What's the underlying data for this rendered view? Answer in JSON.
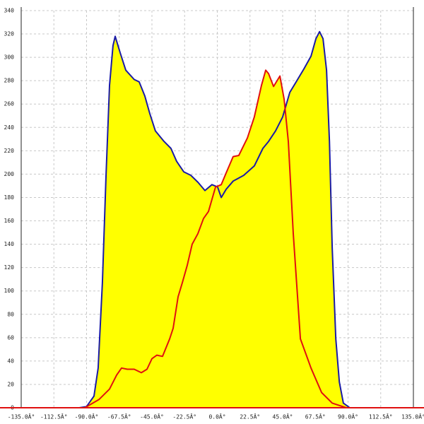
{
  "chart_data": {
    "type": "area",
    "fill": "#ffff00",
    "grid": true,
    "xlim": [
      -135,
      135
    ],
    "ylim": [
      0,
      340
    ],
    "xticks": [
      {
        "value": -135,
        "label": "-135.0Â°"
      },
      {
        "value": -112.5,
        "label": "-112.5Â°"
      },
      {
        "value": -90,
        "label": "-90.0Â°"
      },
      {
        "value": -67.5,
        "label": "-67.5Â°"
      },
      {
        "value": -45,
        "label": "-45.0Â°"
      },
      {
        "value": -22.5,
        "label": "-22.5Â°"
      },
      {
        "value": 0,
        "label": "0.0Â°"
      },
      {
        "value": 22.5,
        "label": "22.5Â°"
      },
      {
        "value": 45,
        "label": "45.0Â°"
      },
      {
        "value": 67.5,
        "label": "67.5Â°"
      },
      {
        "value": 90,
        "label": "90.0Â°"
      },
      {
        "value": 112.5,
        "label": "112.5Â°"
      },
      {
        "value": 135,
        "label": "135.0Â°"
      }
    ],
    "yticks": [
      0,
      20,
      40,
      60,
      80,
      100,
      120,
      140,
      160,
      180,
      200,
      220,
      240,
      260,
      280,
      300,
      320,
      340
    ],
    "series": [
      {
        "color": "#1a1aa6",
        "x": [
          -95,
          -90,
          -84.9,
          -82,
          -79.1,
          -76.6,
          -74.2,
          -71.8,
          -70.3,
          -66.9,
          -63,
          -57.2,
          -53.8,
          -49.9,
          -46.5,
          -42.6,
          -36.7,
          -31.9,
          -28,
          -23.1,
          -18.2,
          -13.3,
          -8.5,
          -3.7,
          0.2,
          2.7,
          6.1,
          10.9,
          18.2,
          25.5,
          31.4,
          35.3,
          40.1,
          45,
          49.9,
          53.8,
          59.6,
          64.5,
          67.9,
          70.4,
          72.8,
          75.2,
          77.2,
          79.1,
          81.6,
          84,
          86.8,
          91.2
        ],
        "values": [
          0,
          1,
          10,
          34,
          107,
          198,
          276,
          310,
          318,
          304,
          289,
          281,
          279,
          267,
          252,
          237,
          228,
          222,
          211,
          202,
          199,
          193,
          186,
          191,
          189,
          180,
          187,
          194,
          199,
          207,
          222,
          228,
          237,
          249,
          270,
          278,
          290,
          301,
          316,
          322,
          316,
          289,
          228,
          137,
          59,
          22,
          4,
          0
        ]
      },
      {
        "color": "#e01010",
        "x": [
          -91.2,
          -81.5,
          -74.2,
          -69.3,
          -65.9,
          -62,
          -57.2,
          -52.3,
          -48.4,
          -45,
          -41.6,
          -37.7,
          -32.8,
          -30.4,
          -27,
          -24.1,
          -20.7,
          -17.3,
          -13.4,
          -9.5,
          -6.1,
          -1.2,
          2.7,
          6.1,
          10.9,
          14.8,
          20.7,
          25.5,
          30.4,
          33.3,
          35.3,
          38.7,
          43.1,
          46,
          48.9,
          52.3,
          57.2,
          64.5,
          71.8,
          79.1,
          88.8
        ],
        "values": [
          0,
          7,
          16,
          28,
          34,
          33,
          33,
          30,
          33,
          42,
          45,
          44,
          59,
          68,
          95,
          107,
          122,
          140,
          149,
          162,
          168,
          189,
          191,
          201,
          215,
          216,
          231,
          249,
          276,
          289,
          286,
          275,
          284,
          264,
          228,
          149,
          59,
          34,
          13,
          4,
          0
        ]
      }
    ]
  }
}
